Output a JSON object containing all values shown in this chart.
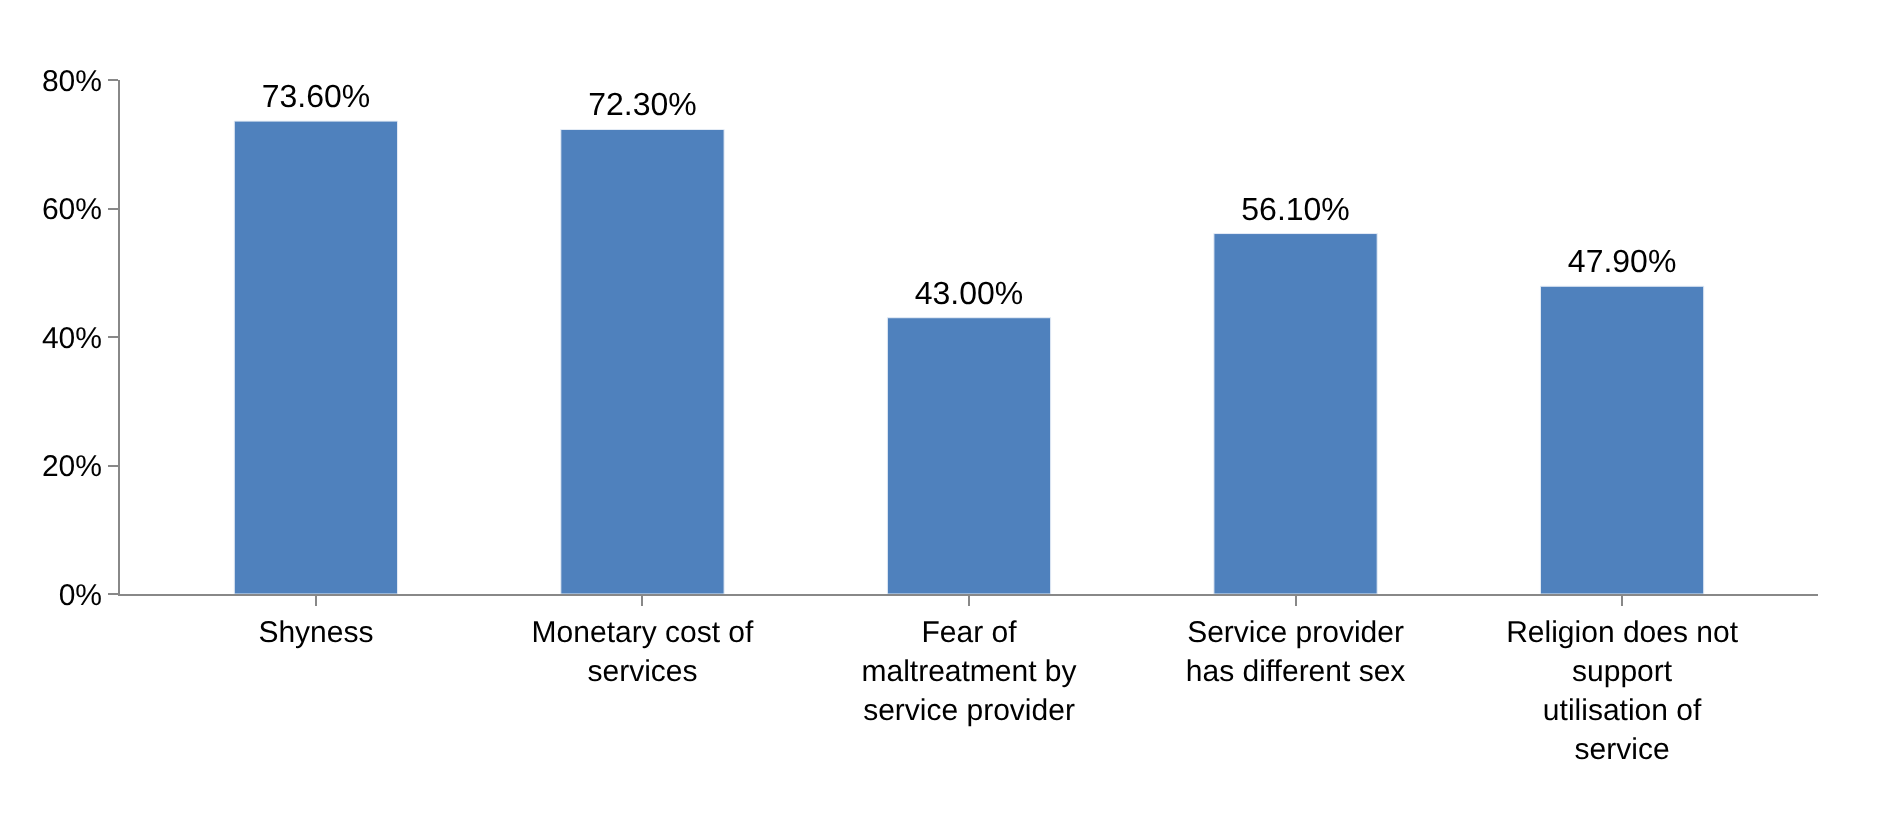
{
  "chart_data": {
    "type": "bar",
    "categories": [
      "Shyness",
      "Monetary cost of services",
      "Fear of maltreatment by service provider",
      "Service provider has different sex",
      "Religion does not support utilisation of service"
    ],
    "values": [
      73.6,
      72.3,
      43.0,
      56.1,
      47.9
    ],
    "value_labels": [
      "73.60%",
      "72.30%",
      "43.00%",
      "56.10%",
      "47.90%"
    ],
    "color": "#4f81bd",
    "ylim": [
      0,
      80
    ],
    "yticks": [
      {
        "value": 0,
        "label": "0%"
      },
      {
        "value": 20,
        "label": "20%"
      },
      {
        "value": 40,
        "label": "40%"
      },
      {
        "value": 60,
        "label": "60%"
      },
      {
        "value": 80,
        "label": "80%"
      }
    ],
    "grid": false,
    "legend": false
  }
}
